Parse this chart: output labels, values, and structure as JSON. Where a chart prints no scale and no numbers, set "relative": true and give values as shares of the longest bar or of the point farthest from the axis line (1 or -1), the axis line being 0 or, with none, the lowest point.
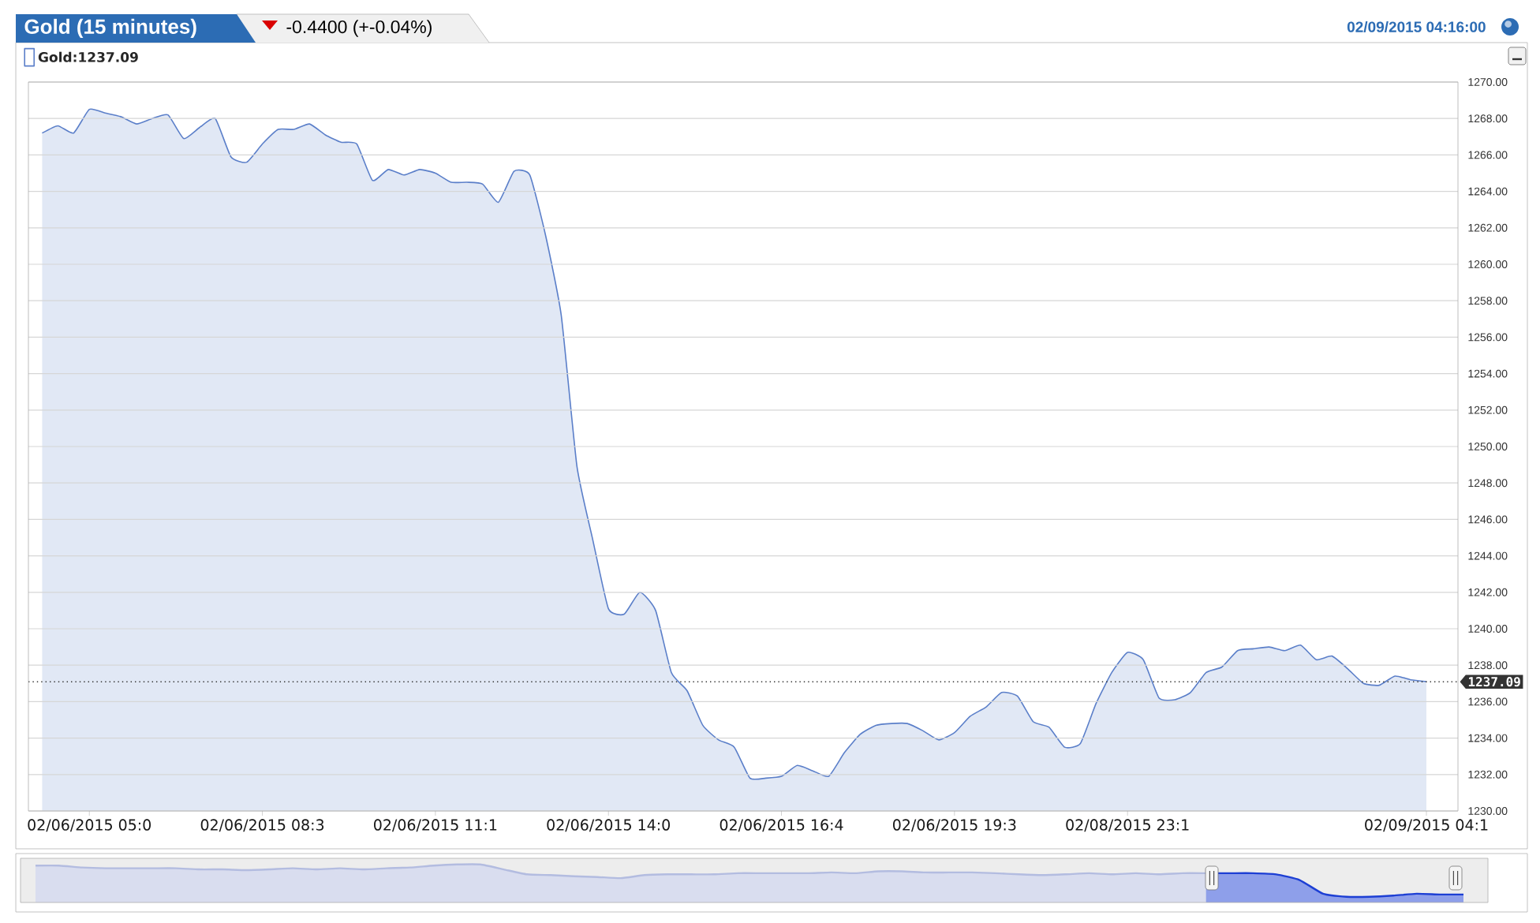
{
  "chart_data": [
    {
      "type": "area",
      "title": "Gold (15 minutes)",
      "subtitle": "-0.4400 (+-0.04%)",
      "annotations": [
        "02/09/2015 04:16:00"
      ],
      "categories": [
        null,
        null,
        null,
        "02/06/2015 05:0",
        null,
        null,
        null,
        null,
        null,
        null,
        null,
        null,
        null,
        null,
        "02/06/2015 08:3",
        null,
        null,
        null,
        null,
        null,
        null,
        null,
        null,
        null,
        null,
        "02/06/2015 11:1",
        null,
        null,
        null,
        null,
        null,
        null,
        null,
        null,
        null,
        null,
        "02/06/2015 14:0",
        null,
        null,
        null,
        null,
        null,
        null,
        null,
        null,
        null,
        null,
        "02/06/2015 16:4",
        null,
        null,
        null,
        null,
        null,
        null,
        null,
        null,
        null,
        null,
        "02/06/2015 19:3",
        null,
        null,
        null,
        null,
        null,
        null,
        null,
        null,
        null,
        null,
        "02/08/2015 23:1",
        null,
        null,
        null,
        null,
        null,
        null,
        null,
        null,
        null,
        null,
        null,
        null,
        null,
        null,
        null,
        null,
        null,
        null,
        "02/09/2015 04:1"
      ],
      "series": [
        {
          "name": "Gold:1237.09",
          "color": "#5b7fc9",
          "values": [
            1267.2,
            1267.6,
            1267.2,
            1268.5,
            1268.3,
            1268.1,
            1267.7,
            1268.0,
            1268.2,
            1266.9,
            1267.5,
            1268.0,
            1265.9,
            1265.6,
            1266.6,
            1267.4,
            1267.4,
            1267.7,
            1267.1,
            1266.7,
            1266.6,
            1264.6,
            1265.2,
            1264.9,
            1265.2,
            1265.0,
            1264.5,
            1264.5,
            1264.4,
            1263.4,
            1265.1,
            1264.9,
            1261.6,
            1257.2,
            1248.9,
            1244.9,
            1241.1,
            1240.8,
            1242.0,
            1241.0,
            1237.6,
            1236.6,
            1234.7,
            1233.9,
            1233.5,
            1231.8,
            1231.8,
            1231.9,
            1232.5,
            1232.2,
            1231.9,
            1233.2,
            1234.2,
            1234.7,
            1234.8,
            1234.8,
            1234.4,
            1233.9,
            1234.3,
            1235.2,
            1235.7,
            1236.5,
            1236.3,
            1234.9,
            1234.6,
            1233.5,
            1233.7,
            1235.9,
            1237.6,
            1238.7,
            1238.3,
            1236.2,
            1236.1,
            1236.5,
            1237.6,
            1237.9,
            1238.8,
            1238.9,
            1239.0,
            1238.8,
            1239.1,
            1238.3,
            1238.5,
            1237.8,
            1237.0,
            1236.9,
            1237.4,
            1237.2,
            1237.1
          ]
        }
      ],
      "ylim": [
        1230,
        1270
      ],
      "yticks": [
        {
          "value": 1230,
          "label": "1230.00"
        },
        {
          "value": 1232,
          "label": "1232.00"
        },
        {
          "value": 1234,
          "label": "1234.00"
        },
        {
          "value": 1236,
          "label": "1236.00"
        },
        {
          "value": 1238,
          "label": "1238.00"
        },
        {
          "value": 1240,
          "label": "1240.00"
        },
        {
          "value": 1242,
          "label": "1242.00"
        },
        {
          "value": 1244,
          "label": "1244.00"
        },
        {
          "value": 1246,
          "label": "1246.00"
        },
        {
          "value": 1248,
          "label": "1248.00"
        },
        {
          "value": 1250,
          "label": "1250.00"
        },
        {
          "value": 1252,
          "label": "1252.00"
        },
        {
          "value": 1254,
          "label": "1254.00"
        },
        {
          "value": 1256,
          "label": "1256.00"
        },
        {
          "value": 1258,
          "label": "1258.00"
        },
        {
          "value": 1260,
          "label": "1260.00"
        },
        {
          "value": 1262,
          "label": "1262.00"
        },
        {
          "value": 1264,
          "label": "1264.00"
        },
        {
          "value": 1266,
          "label": "1266.00"
        },
        {
          "value": 1268,
          "label": "1268.00"
        },
        {
          "value": 1270,
          "label": "1270.00"
        }
      ],
      "grid": "y",
      "legend": "top left",
      "ref_lines": [
        {
          "axis": "y",
          "value": 1237.09,
          "label": "1237.09",
          "color": "#333333",
          "line_style": "dotted"
        }
      ]
    },
    {
      "type": "area",
      "relative": true,
      "categories": [
        null,
        null,
        null,
        null,
        null,
        null,
        null,
        null,
        null,
        null,
        null,
        null,
        null,
        null,
        null,
        null,
        null,
        null,
        null,
        null,
        null,
        null,
        null,
        null,
        null,
        null,
        null,
        null,
        null,
        null,
        null,
        null,
        null,
        null,
        null,
        null,
        null,
        null,
        null,
        null,
        null,
        null,
        null,
        null,
        null,
        null,
        null,
        null,
        null,
        null,
        null,
        null,
        null,
        null,
        null,
        null,
        null,
        null,
        null,
        null,
        null,
        null
      ],
      "series": [
        {
          "color": "#b3bce0",
          "values": [
            0.97,
            0.97,
            0.92,
            0.9,
            0.9,
            0.9,
            0.9,
            0.87,
            0.87,
            0.85,
            0.87,
            0.9,
            0.87,
            0.9,
            0.87,
            0.9,
            0.92,
            0.97,
            1.0,
            1.0,
            0.87,
            0.74,
            0.72,
            0.69,
            0.67,
            0.64,
            0.72,
            0.74,
            0.74,
            0.74,
            0.77,
            0.77,
            0.77,
            0.77,
            0.79,
            0.77,
            0.82,
            0.82,
            0.79,
            0.79,
            0.79,
            0.77,
            0.74,
            0.72,
            0.74,
            0.77,
            0.74,
            0.77,
            0.74,
            0.77,
            0.77,
            null,
            null,
            null,
            null,
            null,
            null,
            null,
            null,
            null,
            null,
            null
          ]
        },
        {
          "color": "#1d3fd4",
          "values": [
            null,
            null,
            null,
            null,
            null,
            null,
            null,
            null,
            null,
            null,
            null,
            null,
            null,
            null,
            null,
            null,
            null,
            null,
            null,
            null,
            null,
            null,
            null,
            null,
            null,
            null,
            null,
            null,
            null,
            null,
            null,
            null,
            null,
            null,
            null,
            null,
            null,
            null,
            null,
            null,
            null,
            null,
            null,
            null,
            null,
            null,
            null,
            null,
            null,
            null,
            0.77,
            0.77,
            0.77,
            0.74,
            0.59,
            0.23,
            0.15,
            0.15,
            0.18,
            0.23,
            0.21,
            0.21
          ]
        }
      ]
    }
  ]
}
